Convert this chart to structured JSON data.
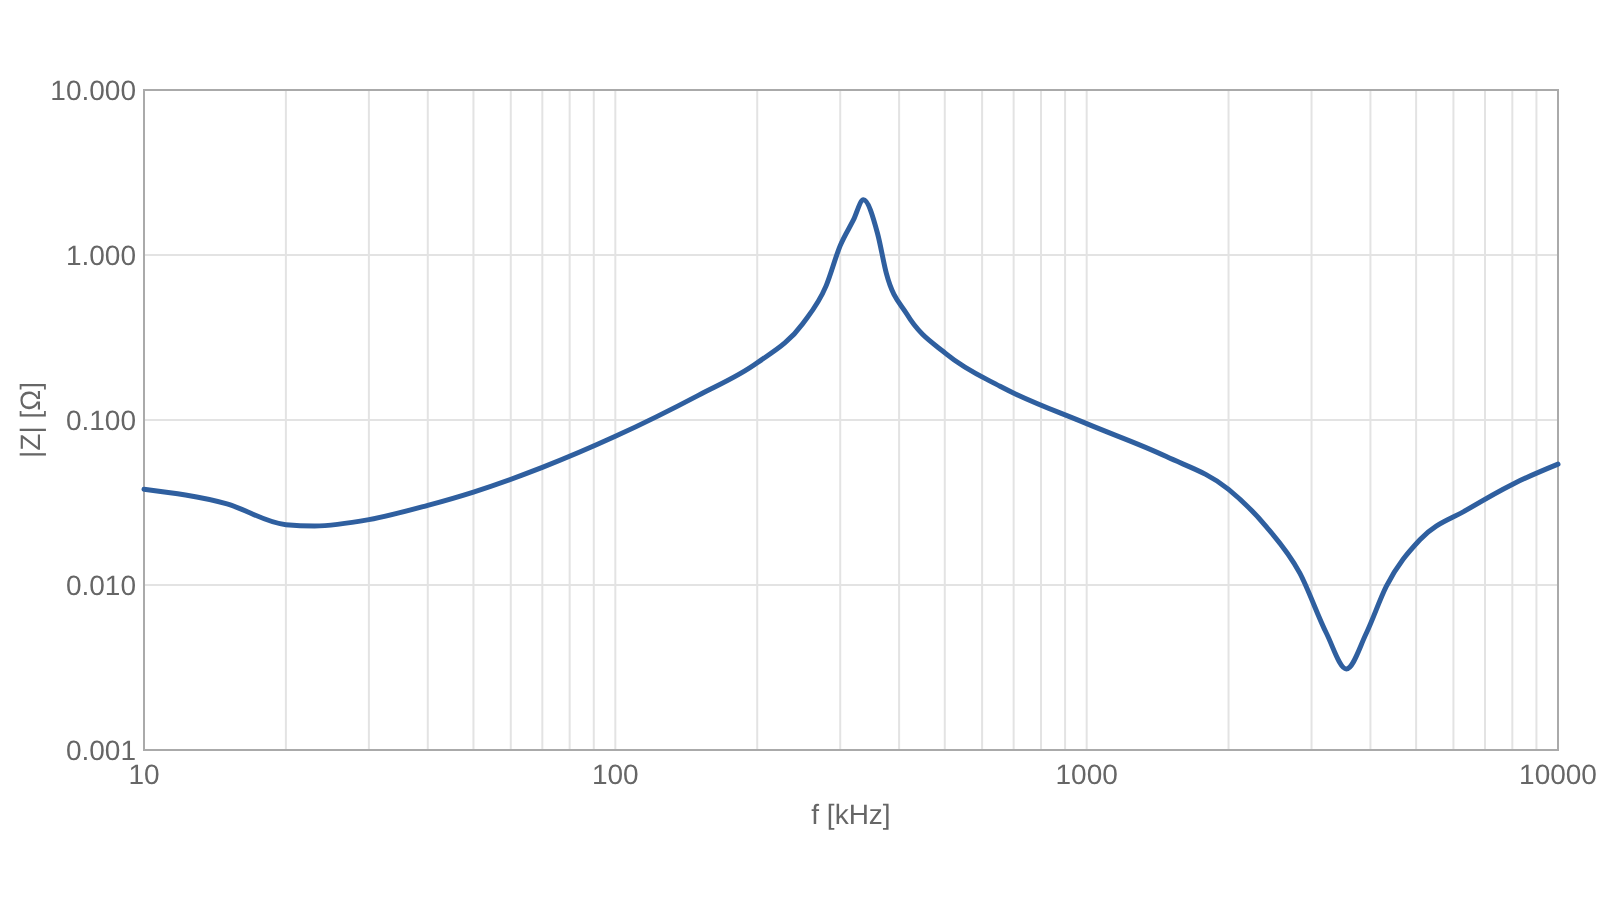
{
  "chart_data": {
    "type": "line",
    "xlabel": "f [kHz]",
    "ylabel": "|Z| [Ω]",
    "log": "xy",
    "grid": true,
    "marker": "none",
    "line_style": "solid",
    "xlim": [
      10,
      10000
    ],
    "ylim": [
      0.001,
      10
    ],
    "xticks": [
      10,
      {
        "value": 20,
        "label": null
      },
      {
        "value": 30,
        "label": null
      },
      {
        "value": 40,
        "label": null
      },
      {
        "value": 50,
        "label": null
      },
      {
        "value": 60,
        "label": null
      },
      {
        "value": 70,
        "label": null
      },
      {
        "value": 80,
        "label": null
      },
      {
        "value": 90,
        "label": null
      },
      100,
      {
        "value": 200,
        "label": null
      },
      {
        "value": 300,
        "label": null
      },
      {
        "value": 400,
        "label": null
      },
      {
        "value": 500,
        "label": null
      },
      {
        "value": 600,
        "label": null
      },
      {
        "value": 700,
        "label": null
      },
      {
        "value": 800,
        "label": null
      },
      {
        "value": 900,
        "label": null
      },
      1000,
      {
        "value": 2000,
        "label": null
      },
      {
        "value": 3000,
        "label": null
      },
      {
        "value": 4000,
        "label": null
      },
      {
        "value": 5000,
        "label": null
      },
      {
        "value": 6000,
        "label": null
      },
      {
        "value": 7000,
        "label": null
      },
      {
        "value": 8000,
        "label": null
      },
      {
        "value": 9000,
        "label": null
      },
      10000
    ],
    "yticks": [
      {
        "value": 0.001,
        "label": "0.001"
      },
      {
        "value": 0.01,
        "label": "0.010"
      },
      {
        "value": 0.1,
        "label": "0.100"
      },
      {
        "value": 1,
        "label": "1.000"
      },
      {
        "value": 10,
        "label": "10.000"
      }
    ],
    "series": [
      {
        "color": "#2f5f9f",
        "x": [
          10,
          15,
          20,
          23,
          30,
          40,
          50,
          70,
          100,
          150,
          200,
          250,
          280,
          300,
          320,
          336,
          360,
          376,
          415,
          505,
          655,
          1000,
          1476,
          2000,
          2404,
          2833,
          3226,
          3556,
          3920,
          4322,
          5093,
          6400,
          8035,
          10000
        ],
        "values": [
          0.038,
          0.031,
          0.0232,
          0.0228,
          0.0249,
          0.0304,
          0.0366,
          0.0516,
          0.0796,
          0.141,
          0.222,
          0.385,
          0.65,
          1.14,
          1.63,
          2.16,
          1.35,
          0.77,
          0.44,
          0.25,
          0.16,
          0.095,
          0.06,
          0.038,
          0.0226,
          0.0118,
          0.0051,
          0.0031,
          0.0051,
          0.0098,
          0.0188,
          0.0285,
          0.041,
          0.054
        ]
      }
    ]
  }
}
